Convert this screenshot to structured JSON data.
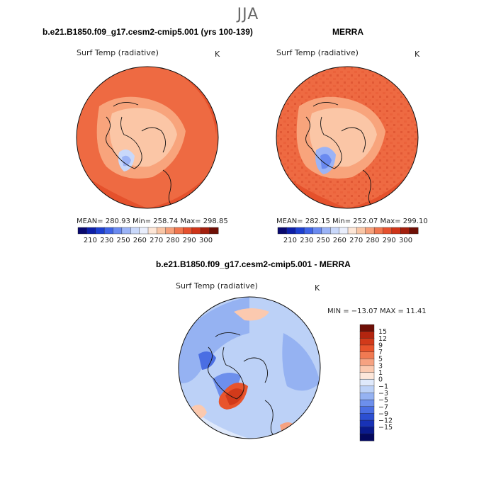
{
  "figure": {
    "season": "JJA",
    "variable_label": "Surf Temp (radiative)",
    "units": "K"
  },
  "panels": {
    "model": {
      "title": "b.e21.B1850.f09_g17.cesm2-cmip5.001 (yrs 100-139)",
      "stats": "MEAN= 280.93   Min= 258.74   Max= 298.85"
    },
    "obs": {
      "title": "MERRA",
      "stats": "MEAN= 282.15   Min= 252.07   Max= 299.10"
    },
    "diff": {
      "title": "b.e21.B1850.f09_g17.cesm2-cmip5.001 - MERRA",
      "stats": "MIN = −13.07 MAX =   11.41"
    }
  },
  "chart_data": [
    {
      "type": "heatmap",
      "projection": "north polar stereographic",
      "title": "b.e21.B1850.f09_g17.cesm2-cmip5.001 (yrs 100-139)",
      "variable": "Surf Temp (radiative)",
      "units": "K",
      "mean": 280.93,
      "min": 258.74,
      "max": 298.85,
      "colorbar_levels": [
        210,
        220,
        230,
        240,
        250,
        255,
        260,
        265,
        270,
        275,
        280,
        285,
        290,
        295,
        300
      ],
      "colorbar_tick_labels": [
        "210",
        "230",
        "250",
        "260",
        "270",
        "280",
        "290",
        "300"
      ],
      "colorbar_colors": [
        "#08086e",
        "#0d1fa8",
        "#1d3fd0",
        "#3f63e6",
        "#6a8af0",
        "#9bb3f6",
        "#c9d8fa",
        "#e9eefc",
        "#fde6d6",
        "#f9c6a6",
        "#f6a07a",
        "#f0764e",
        "#e6512e",
        "#cf3418",
        "#a31f0d",
        "#6e0f06"
      ]
    },
    {
      "type": "heatmap",
      "projection": "north polar stereographic",
      "title": "MERRA",
      "variable": "Surf Temp (radiative)",
      "units": "K",
      "mean": 282.15,
      "min": 252.07,
      "max": 299.1,
      "colorbar_levels": [
        210,
        220,
        230,
        240,
        250,
        255,
        260,
        265,
        270,
        275,
        280,
        285,
        290,
        295,
        300
      ],
      "colorbar_tick_labels": [
        "210",
        "230",
        "250",
        "260",
        "270",
        "280",
        "290",
        "300"
      ],
      "colorbar_colors": [
        "#08086e",
        "#0d1fa8",
        "#1d3fd0",
        "#3f63e6",
        "#6a8af0",
        "#9bb3f6",
        "#c9d8fa",
        "#e9eefc",
        "#fde6d6",
        "#f9c6a6",
        "#f6a07a",
        "#f0764e",
        "#e6512e",
        "#cf3418",
        "#a31f0d",
        "#6e0f06"
      ]
    },
    {
      "type": "heatmap",
      "projection": "north polar stereographic",
      "title": "b.e21.B1850.f09_g17.cesm2-cmip5.001 - MERRA",
      "variable": "Surf Temp (radiative)",
      "units": "K",
      "min": -13.07,
      "max": 11.41,
      "colorbar_tick_labels": [
        "15",
        "12",
        "9",
        "7",
        "5",
        "3",
        "1",
        "0",
        "−1",
        "−3",
        "−5",
        "−7",
        "−9",
        "−12",
        "−15"
      ],
      "colorbar_colors": [
        "#6e0f06",
        "#b3250f",
        "#d23a1a",
        "#e8542c",
        "#f07a52",
        "#f6a281",
        "#fbc9af",
        "#fde7da",
        "#dfe9fb",
        "#bcd1f7",
        "#95b2f2",
        "#6d8fec",
        "#4a6ee3",
        "#2c4fd2",
        "#1832b6",
        "#0a1a8c",
        "#04085e"
      ]
    }
  ]
}
